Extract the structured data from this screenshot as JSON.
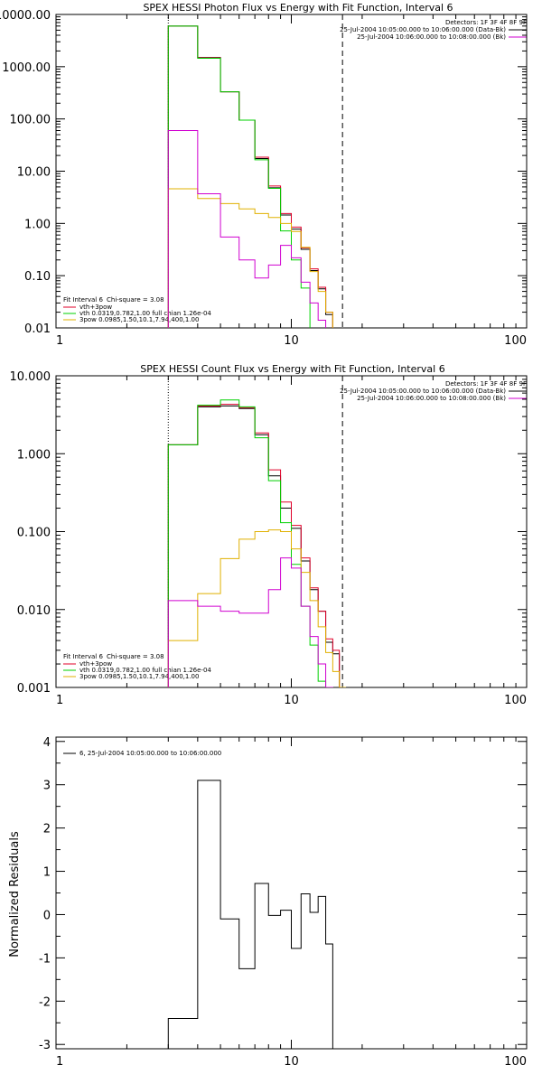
{
  "chart_data": [
    {
      "type": "line",
      "title": "SPEX HESSI Photon Flux vs Energy with Fit Function, Interval 6",
      "xscale": "log",
      "yscale": "log",
      "xlim": [
        1,
        100
      ],
      "ylim": [
        0.01,
        10000
      ],
      "xticks": [
        1,
        10,
        100
      ],
      "xticklabels": [
        "1",
        "10",
        "100"
      ],
      "yticks": [
        0.01,
        0.1,
        1,
        10,
        100,
        1000,
        10000
      ],
      "yticklabels": [
        "0.01",
        "0.10",
        "1.00",
        "10.00",
        "100.00",
        "1000.00",
        "10000.00"
      ],
      "ylabel": "",
      "vlines": [
        {
          "x": 3.0,
          "style": "dotted",
          "color": "#000000"
        },
        {
          "x": 16.5,
          "style": "dashed",
          "color": "#000000"
        }
      ],
      "info_lines": [
        "Detectors: 1F 3F 4F 8F 9F",
        "25-Jul-2004 10:05:00.000 to 10:06:00.000 (Data-Bk)",
        "25-Jul-2004 10:06:00.000 to 10:08:00.000 (Bk)"
      ],
      "fit_text": {
        "interval": "Fit Interval 6",
        "chi": "Chi-square = 3.08",
        "lines": [
          {
            "label": "vth+3pow",
            "color": "#e0002a"
          },
          {
            "label": "vth 0.0319,0.782,1.00  full chian 1.26e-04",
            "color": "#00d000"
          },
          {
            "label": "3pow 0.0985,1.50,10.1,7.94,400,1.00",
            "color": "#e0b000"
          }
        ]
      },
      "bin_edges": [
        3.0,
        4.0,
        5.0,
        6.0,
        7.0,
        8.0,
        9.0,
        10.0,
        11.0,
        12.0,
        13.0,
        14.0,
        15.0,
        16.0,
        17.0,
        18.0
      ],
      "series": [
        {
          "name": "data",
          "color": "#000000",
          "values": [
            6000,
            1500,
            330,
            95,
            17.5,
            4.8,
            1.45,
            0.78,
            0.32,
            0.125,
            0.056,
            0.018,
            0.009,
            null,
            null
          ]
        },
        {
          "name": "vth+3pow",
          "color": "#e0002a",
          "values": [
            6000,
            1480,
            330,
            95,
            18.5,
            5.2,
            1.55,
            0.85,
            0.34,
            0.135,
            0.06,
            0.02,
            0.009,
            null,
            null
          ]
        },
        {
          "name": "vth",
          "color": "#00d000",
          "values": [
            6000,
            1450,
            330,
            95,
            16.5,
            4.7,
            0.72,
            0.2,
            0.058,
            0.009,
            null,
            null,
            null,
            null,
            null
          ]
        },
        {
          "name": "3pow",
          "color": "#e0b000",
          "values": [
            4.6,
            3.0,
            2.4,
            1.9,
            1.55,
            1.3,
            1.0,
            0.7,
            0.35,
            0.12,
            0.05,
            0.02,
            0.009,
            0.005,
            null
          ]
        },
        {
          "name": "",
          "color": "#d000d0",
          "values": [
            60,
            3.7,
            0.55,
            0.2,
            0.09,
            0.16,
            0.38,
            0.22,
            0.075,
            0.03,
            0.014,
            0.008,
            null,
            null,
            null
          ]
        }
      ]
    },
    {
      "type": "line",
      "title": "SPEX HESSI Count Flux vs Energy with Fit Function, Interval 6",
      "xscale": "log",
      "yscale": "log",
      "xlim": [
        1,
        100
      ],
      "ylim": [
        0.001,
        10
      ],
      "xticks": [
        1,
        10,
        100
      ],
      "xticklabels": [
        "1",
        "10",
        "100"
      ],
      "yticks": [
        0.001,
        0.01,
        0.1,
        1,
        10
      ],
      "yticklabels": [
        "0.001",
        "0.010",
        "0.100",
        "1.000",
        "10.000"
      ],
      "ylabel": "",
      "vlines": [
        {
          "x": 3.0,
          "style": "dotted",
          "color": "#000000"
        },
        {
          "x": 16.5,
          "style": "dashed",
          "color": "#000000"
        }
      ],
      "info_lines": [
        "Detectors: 1F 3F 4F 8F 9F",
        "25-Jul-2004 10:05:00.000 to 10:06:00.000 (Data-Bk)",
        "25-Jul-2004 10:06:00.000 to 10:08:00.000 (Bk)"
      ],
      "fit_text": {
        "interval": "Fit Interval 6",
        "chi": "Chi-square = 3.08",
        "lines": [
          {
            "label": "vth+3pow",
            "color": "#e0002a"
          },
          {
            "label": "vth 0.0319,0.782,1.00  full chian 1.26e-04",
            "color": "#00d000"
          },
          {
            "label": "3pow 0.0985,1.50,10.1,7.94,400,1.00",
            "color": "#e0b000"
          }
        ]
      },
      "bin_edges": [
        3.0,
        4.0,
        5.0,
        6.0,
        7.0,
        8.0,
        9.0,
        10.0,
        11.0,
        12.0,
        13.0,
        14.0,
        15.0,
        16.0,
        17.0,
        18.0
      ],
      "series": [
        {
          "name": "data",
          "color": "#000000",
          "values": [
            1.3,
            4.0,
            4.1,
            3.8,
            1.75,
            0.52,
            0.2,
            0.11,
            0.042,
            0.018,
            0.0095,
            0.0038,
            0.0027,
            null,
            null
          ]
        },
        {
          "name": "vth+3pow",
          "color": "#e0002a",
          "values": [
            1.3,
            4.1,
            4.3,
            3.9,
            1.85,
            0.62,
            0.24,
            0.12,
            0.046,
            0.019,
            0.0095,
            0.0042,
            0.003,
            null,
            null
          ]
        },
        {
          "name": "vth",
          "color": "#00d000",
          "values": [
            1.3,
            4.2,
            4.9,
            4.0,
            1.6,
            0.45,
            0.13,
            0.038,
            0.011,
            0.0035,
            0.0012,
            0.0004,
            null,
            null,
            null
          ]
        },
        {
          "name": "3pow",
          "color": "#e0b000",
          "values": [
            0.004,
            0.016,
            0.045,
            0.08,
            0.1,
            0.105,
            0.1,
            0.06,
            0.03,
            0.013,
            0.006,
            0.0028,
            0.0016,
            0.001,
            0.0005
          ]
        },
        {
          "name": "",
          "color": "#d000d0",
          "values": [
            0.013,
            0.011,
            0.0095,
            0.009,
            0.009,
            0.018,
            0.046,
            0.034,
            0.011,
            0.0045,
            0.002,
            0.001,
            null,
            null,
            null
          ]
        }
      ]
    },
    {
      "type": "line",
      "title": "",
      "xscale": "log",
      "yscale": "linear",
      "xlim": [
        1,
        100
      ],
      "ylim": [
        -3.1,
        4.1
      ],
      "xticks": [
        1,
        10,
        100
      ],
      "xticklabels": [
        "1",
        "10",
        "100"
      ],
      "yticks": [
        -3,
        -2,
        -1,
        0,
        1,
        2,
        3,
        4
      ],
      "yticklabels": [
        "-3",
        "-2",
        "-1",
        "0",
        "1",
        "2",
        "3",
        "4"
      ],
      "ylabel": "Normalized Residuals",
      "legend": {
        "label": "6, 25-Jul-2004 10:05:00.000 to 10:06:00.000",
        "color": "#000000"
      },
      "bin_edges": [
        3.0,
        4.0,
        5.0,
        6.0,
        7.0,
        8.0,
        9.0,
        10.0,
        11.0,
        12.0,
        13.0,
        14.0,
        15.0,
        16.0,
        17.0
      ],
      "series": [
        {
          "name": "residuals",
          "color": "#000000",
          "values": [
            -2.4,
            3.1,
            -0.1,
            -1.25,
            0.72,
            -0.02,
            0.1,
            -0.78,
            0.48,
            0.05,
            0.42,
            -0.68,
            null,
            null
          ]
        }
      ]
    }
  ]
}
